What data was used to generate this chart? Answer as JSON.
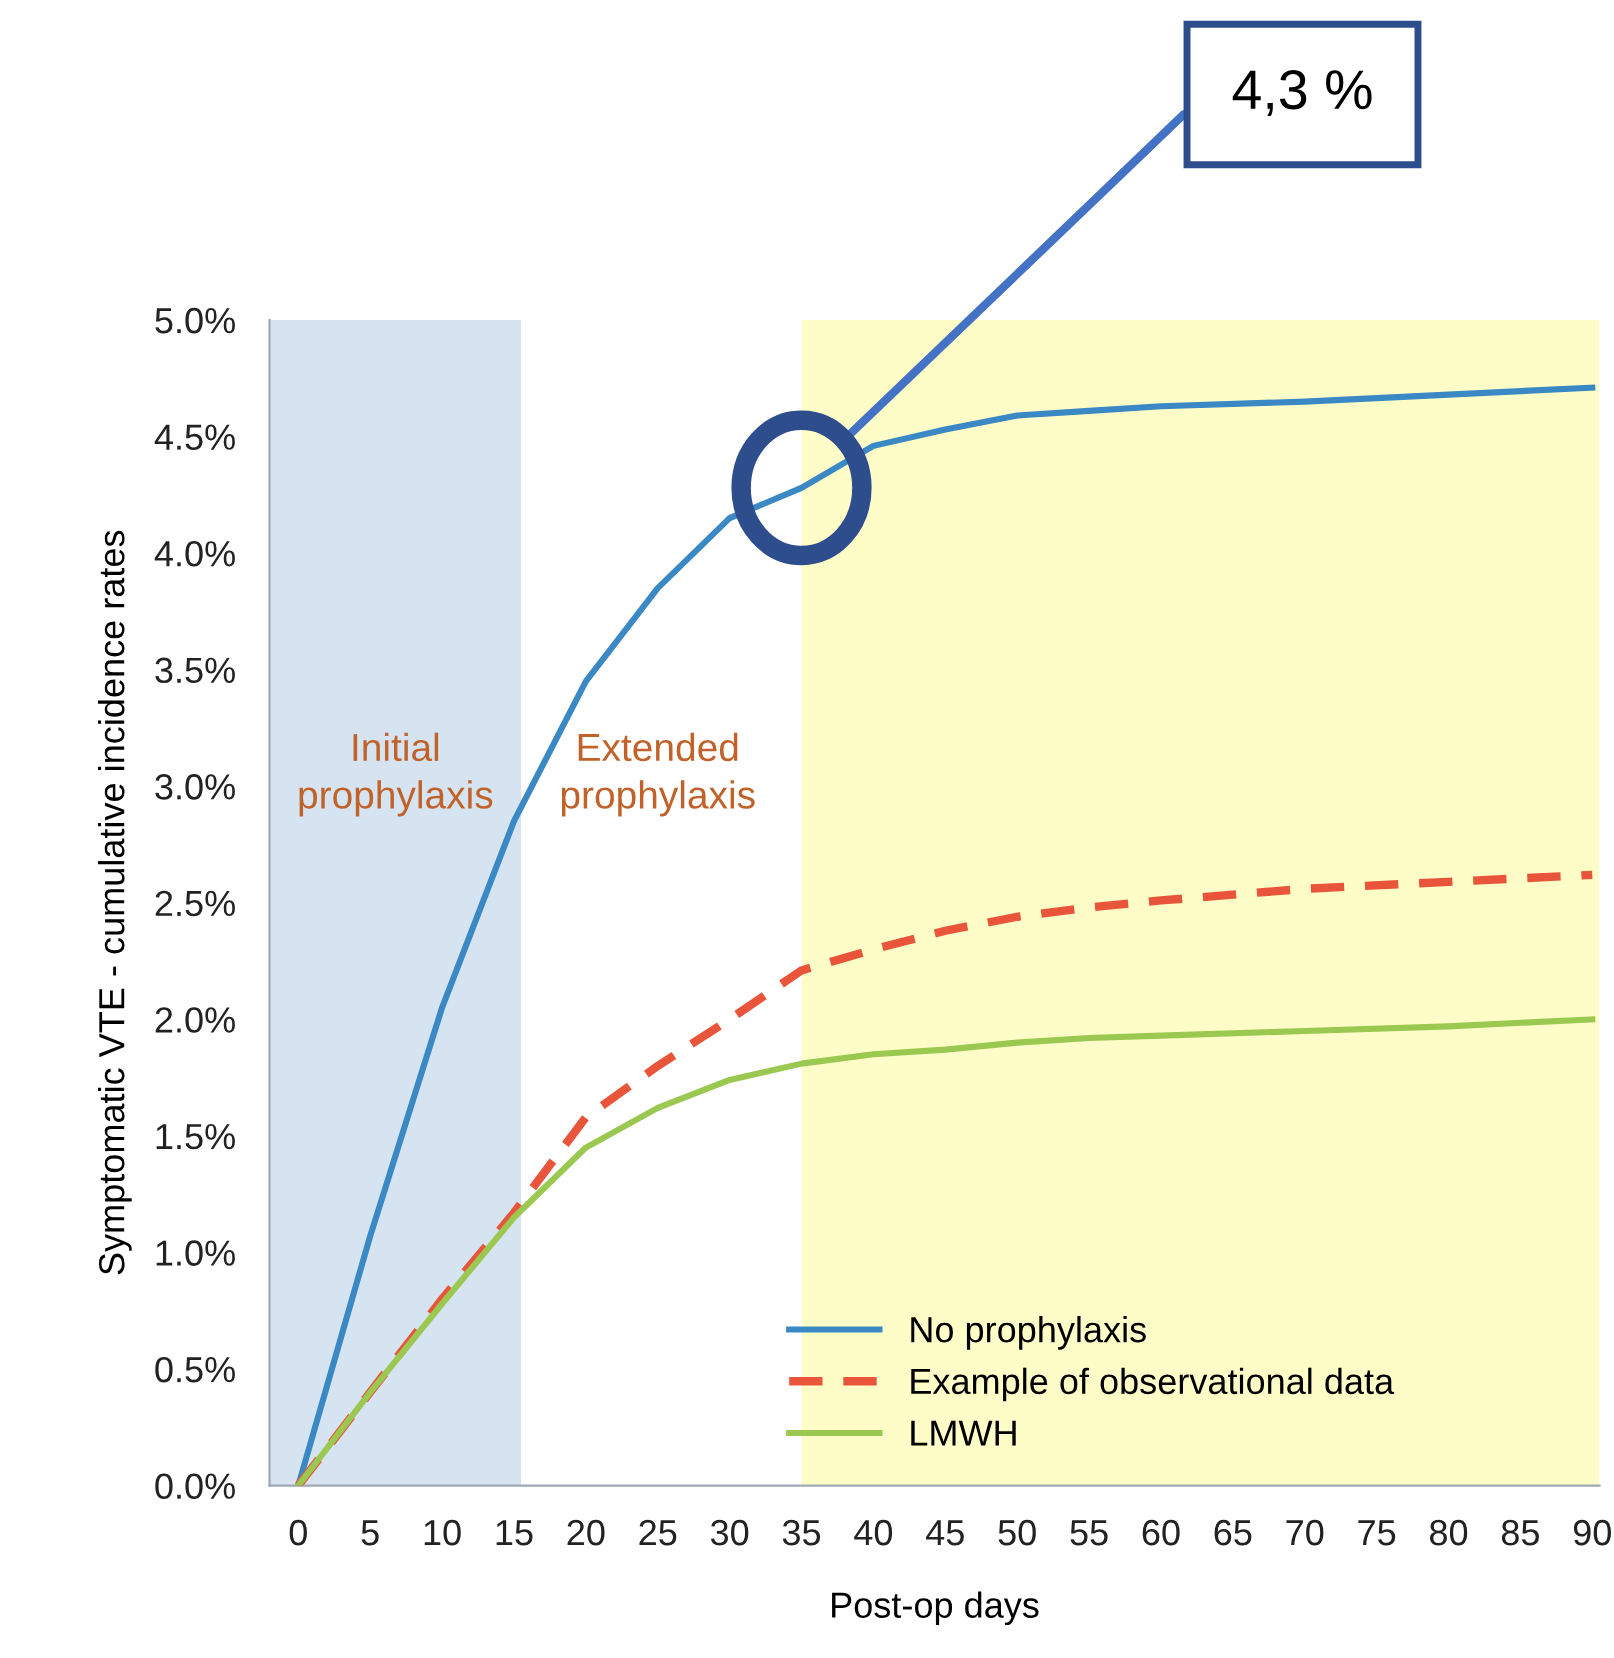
{
  "chart_data": {
    "type": "line",
    "xlabel": "Post-op days",
    "ylabel": "Symptomatic VTE - cumulative incidence rates",
    "x": [
      0,
      5,
      10,
      15,
      20,
      25,
      30,
      35,
      40,
      45,
      50,
      55,
      60,
      70,
      80,
      90
    ],
    "series": [
      {
        "name": "No prophylaxis",
        "color": "#3a88c4",
        "line_style": "solid",
        "values": [
          0,
          1.07,
          2.05,
          2.85,
          3.45,
          3.85,
          4.15,
          4.28,
          4.46,
          4.53,
          4.59,
          4.61,
          4.63,
          4.65,
          4.68,
          4.71
        ]
      },
      {
        "name": "Example of observational data",
        "color": "#e8553a",
        "line_style": "dashed",
        "values": [
          0,
          0.4,
          0.8,
          1.17,
          1.58,
          1.8,
          2.0,
          2.21,
          2.3,
          2.38,
          2.44,
          2.48,
          2.51,
          2.56,
          2.59,
          2.62
        ]
      },
      {
        "name": "LMWH",
        "color": "#9bc850",
        "line_style": "solid",
        "values": [
          0,
          0.4,
          0.78,
          1.15,
          1.45,
          1.62,
          1.74,
          1.81,
          1.85,
          1.87,
          1.9,
          1.92,
          1.93,
          1.95,
          1.97,
          2.0
        ]
      }
    ],
    "xlim": [
      -2,
      90.5
    ],
    "ylim": [
      0,
      5
    ],
    "xticks": [
      0,
      5,
      10,
      15,
      20,
      25,
      30,
      35,
      40,
      45,
      50,
      55,
      60,
      65,
      70,
      75,
      80,
      85,
      90
    ],
    "yticks": [
      {
        "value": 0,
        "label": "0.0%"
      },
      {
        "value": 0.5,
        "label": "0.5%"
      },
      {
        "value": 1,
        "label": "1.0%"
      },
      {
        "value": 1.5,
        "label": "1.5%"
      },
      {
        "value": 2,
        "label": "2.0%"
      },
      {
        "value": 2.5,
        "label": "2.5%"
      },
      {
        "value": 3,
        "label": "3.0%"
      },
      {
        "value": 3.5,
        "label": "3.5%"
      },
      {
        "value": 4,
        "label": "4.0%"
      },
      {
        "value": 4.5,
        "label": "4.5%"
      },
      {
        "value": 5,
        "label": "5.0%"
      }
    ],
    "bands": [
      {
        "axis": "x",
        "from": -2,
        "to": 15.5,
        "label": "Initial\nprophylaxis",
        "color": "#d6e3f1"
      },
      {
        "axis": "x",
        "from": 35,
        "to": 90.5,
        "color": "#fefdc8"
      }
    ],
    "annotations": [
      "Extended\nprophylaxis",
      "4,3 %"
    ],
    "grid": false,
    "legend": "bottom right",
    "marker": "none"
  }
}
